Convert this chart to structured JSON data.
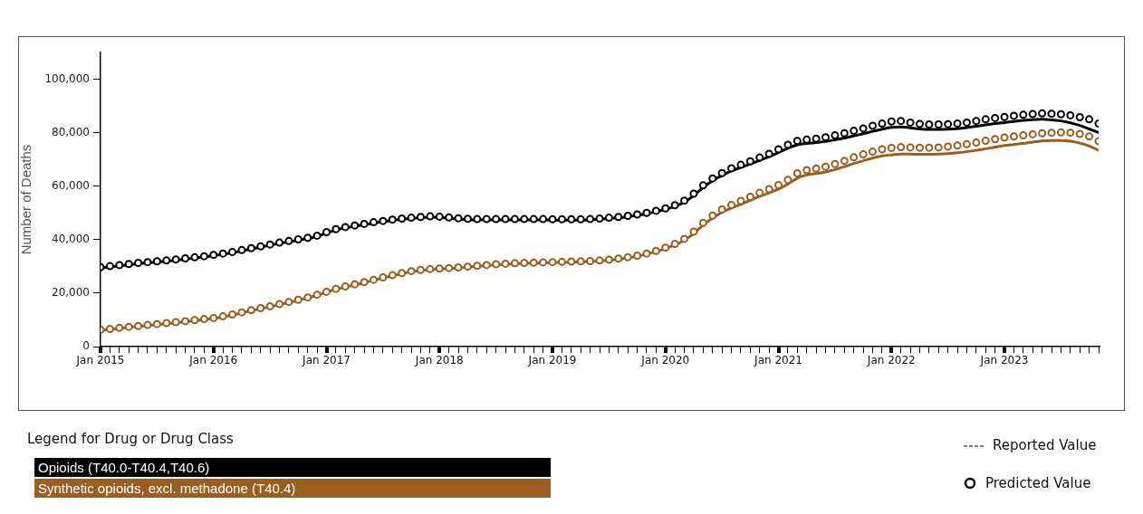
{
  "chart_data": {
    "type": "line",
    "ylabel": "Number of Deaths",
    "legend_title": "Legend for Drug or Drug Class",
    "legend": "bottom",
    "grid": false,
    "annotations": [
      "Reported Value",
      "Predicted Value"
    ],
    "x": [
      "2015-01",
      "2015-02",
      "2015-03",
      "2015-04",
      "2015-05",
      "2015-06",
      "2015-07",
      "2015-08",
      "2015-09",
      "2015-10",
      "2015-11",
      "2015-12",
      "2016-01",
      "2016-02",
      "2016-03",
      "2016-04",
      "2016-05",
      "2016-06",
      "2016-07",
      "2016-08",
      "2016-09",
      "2016-10",
      "2016-11",
      "2016-12",
      "2017-01",
      "2017-02",
      "2017-03",
      "2017-04",
      "2017-05",
      "2017-06",
      "2017-07",
      "2017-08",
      "2017-09",
      "2017-10",
      "2017-11",
      "2017-12",
      "2018-01",
      "2018-02",
      "2018-03",
      "2018-04",
      "2018-05",
      "2018-06",
      "2018-07",
      "2018-08",
      "2018-09",
      "2018-10",
      "2018-11",
      "2018-12",
      "2019-01",
      "2019-02",
      "2019-03",
      "2019-04",
      "2019-05",
      "2019-06",
      "2019-07",
      "2019-08",
      "2019-09",
      "2019-10",
      "2019-11",
      "2019-12",
      "2020-01",
      "2020-02",
      "2020-03",
      "2020-04",
      "2020-05",
      "2020-06",
      "2020-07",
      "2020-08",
      "2020-09",
      "2020-10",
      "2020-11",
      "2020-12",
      "2021-01",
      "2021-02",
      "2021-03",
      "2021-04",
      "2021-05",
      "2021-06",
      "2021-07",
      "2021-08",
      "2021-09",
      "2021-10",
      "2021-11",
      "2021-12",
      "2022-01",
      "2022-02",
      "2022-03",
      "2022-04",
      "2022-05",
      "2022-06",
      "2022-07",
      "2022-08",
      "2022-09",
      "2022-10",
      "2022-11",
      "2022-12",
      "2023-01",
      "2023-02",
      "2023-03",
      "2023-04",
      "2023-05",
      "2023-06",
      "2023-07",
      "2023-08",
      "2023-09",
      "2023-10",
      "2023-11"
    ],
    "xlim": [
      "2015-01",
      "2023-11"
    ],
    "xticks": [
      {
        "value": "2015-01",
        "label": "Jan 2015"
      },
      {
        "value": "2015-02",
        "label": null
      },
      {
        "value": "2015-03",
        "label": null
      },
      {
        "value": "2015-04",
        "label": null
      },
      {
        "value": "2015-05",
        "label": null
      },
      {
        "value": "2015-06",
        "label": null
      },
      {
        "value": "2015-07",
        "label": null
      },
      {
        "value": "2015-08",
        "label": null
      },
      {
        "value": "2015-09",
        "label": null
      },
      {
        "value": "2015-10",
        "label": null
      },
      {
        "value": "2015-11",
        "label": null
      },
      {
        "value": "2015-12",
        "label": null
      },
      {
        "value": "2016-01",
        "label": "Jan 2016"
      },
      {
        "value": "2016-02",
        "label": null
      },
      {
        "value": "2016-03",
        "label": null
      },
      {
        "value": "2016-04",
        "label": null
      },
      {
        "value": "2016-05",
        "label": null
      },
      {
        "value": "2016-06",
        "label": null
      },
      {
        "value": "2016-07",
        "label": null
      },
      {
        "value": "2016-08",
        "label": null
      },
      {
        "value": "2016-09",
        "label": null
      },
      {
        "value": "2016-10",
        "label": null
      },
      {
        "value": "2016-11",
        "label": null
      },
      {
        "value": "2016-12",
        "label": null
      },
      {
        "value": "2017-01",
        "label": "Jan 2017"
      },
      {
        "value": "2017-02",
        "label": null
      },
      {
        "value": "2017-03",
        "label": null
      },
      {
        "value": "2017-04",
        "label": null
      },
      {
        "value": "2017-05",
        "label": null
      },
      {
        "value": "2017-06",
        "label": null
      },
      {
        "value": "2017-07",
        "label": null
      },
      {
        "value": "2017-08",
        "label": null
      },
      {
        "value": "2017-09",
        "label": null
      },
      {
        "value": "2017-10",
        "label": null
      },
      {
        "value": "2017-11",
        "label": null
      },
      {
        "value": "2017-12",
        "label": null
      },
      {
        "value": "2018-01",
        "label": "Jan 2018"
      },
      {
        "value": "2018-02",
        "label": null
      },
      {
        "value": "2018-03",
        "label": null
      },
      {
        "value": "2018-04",
        "label": null
      },
      {
        "value": "2018-05",
        "label": null
      },
      {
        "value": "2018-06",
        "label": null
      },
      {
        "value": "2018-07",
        "label": null
      },
      {
        "value": "2018-08",
        "label": null
      },
      {
        "value": "2018-09",
        "label": null
      },
      {
        "value": "2018-10",
        "label": null
      },
      {
        "value": "2018-11",
        "label": null
      },
      {
        "value": "2018-12",
        "label": null
      },
      {
        "value": "2019-01",
        "label": "Jan 2019"
      },
      {
        "value": "2019-02",
        "label": null
      },
      {
        "value": "2019-03",
        "label": null
      },
      {
        "value": "2019-04",
        "label": null
      },
      {
        "value": "2019-05",
        "label": null
      },
      {
        "value": "2019-06",
        "label": null
      },
      {
        "value": "2019-07",
        "label": null
      },
      {
        "value": "2019-08",
        "label": null
      },
      {
        "value": "2019-09",
        "label": null
      },
      {
        "value": "2019-10",
        "label": null
      },
      {
        "value": "2019-11",
        "label": null
      },
      {
        "value": "2019-12",
        "label": null
      },
      {
        "value": "2020-01",
        "label": "Jan 2020"
      },
      {
        "value": "2020-02",
        "label": null
      },
      {
        "value": "2020-03",
        "label": null
      },
      {
        "value": "2020-04",
        "label": null
      },
      {
        "value": "2020-05",
        "label": null
      },
      {
        "value": "2020-06",
        "label": null
      },
      {
        "value": "2020-07",
        "label": null
      },
      {
        "value": "2020-08",
        "label": null
      },
      {
        "value": "2020-09",
        "label": null
      },
      {
        "value": "2020-10",
        "label": null
      },
      {
        "value": "2020-11",
        "label": null
      },
      {
        "value": "2020-12",
        "label": null
      },
      {
        "value": "2021-01",
        "label": "Jan 2021"
      },
      {
        "value": "2021-02",
        "label": null
      },
      {
        "value": "2021-03",
        "label": null
      },
      {
        "value": "2021-04",
        "label": null
      },
      {
        "value": "2021-05",
        "label": null
      },
      {
        "value": "2021-06",
        "label": null
      },
      {
        "value": "2021-07",
        "label": null
      },
      {
        "value": "2021-08",
        "label": null
      },
      {
        "value": "2021-09",
        "label": null
      },
      {
        "value": "2021-10",
        "label": null
      },
      {
        "value": "2021-11",
        "label": null
      },
      {
        "value": "2021-12",
        "label": null
      },
      {
        "value": "2022-01",
        "label": "Jan 2022"
      },
      {
        "value": "2022-02",
        "label": null
      },
      {
        "value": "2022-03",
        "label": null
      },
      {
        "value": "2022-04",
        "label": null
      },
      {
        "value": "2022-05",
        "label": null
      },
      {
        "value": "2022-06",
        "label": null
      },
      {
        "value": "2022-07",
        "label": null
      },
      {
        "value": "2022-08",
        "label": null
      },
      {
        "value": "2022-09",
        "label": null
      },
      {
        "value": "2022-10",
        "label": null
      },
      {
        "value": "2022-11",
        "label": null
      },
      {
        "value": "2022-12",
        "label": null
      },
      {
        "value": "2023-01",
        "label": "Jan 2023"
      },
      {
        "value": "2023-02",
        "label": null
      },
      {
        "value": "2023-03",
        "label": null
      },
      {
        "value": "2023-04",
        "label": null
      },
      {
        "value": "2023-05",
        "label": null
      },
      {
        "value": "2023-06",
        "label": null
      },
      {
        "value": "2023-07",
        "label": null
      },
      {
        "value": "2023-08",
        "label": null
      },
      {
        "value": "2023-09",
        "label": null
      },
      {
        "value": "2023-10",
        "label": null
      },
      {
        "value": "2023-11",
        "label": null
      }
    ],
    "ylim": [
      0,
      110000
    ],
    "yticks": [
      {
        "value": 0,
        "label": "0"
      },
      {
        "value": 20000,
        "label": "20,000"
      },
      {
        "value": 40000,
        "label": "40,000"
      },
      {
        "value": 60000,
        "label": "60,000"
      },
      {
        "value": 80000,
        "label": "80,000"
      },
      {
        "value": 100000,
        "label": "100,000"
      }
    ],
    "series": [
      {
        "name": "Opioids (T40.0-T40.4,T40.6)",
        "marker": "none",
        "color": "#000000",
        "values": [
          29400,
          29800,
          30200,
          30600,
          31000,
          31300,
          31600,
          31900,
          32300,
          32700,
          33100,
          33500,
          34000,
          34500,
          35100,
          35800,
          36500,
          37200,
          37900,
          38600,
          39200,
          39800,
          40400,
          41200,
          42500,
          43600,
          44400,
          45000,
          45600,
          46200,
          46700,
          47200,
          47600,
          47900,
          48200,
          48400,
          48300,
          48000,
          47700,
          47500,
          47400,
          47400,
          47400,
          47400,
          47400,
          47400,
          47400,
          47400,
          47300,
          47300,
          47300,
          47300,
          47400,
          47600,
          47900,
          48200,
          48600,
          49100,
          49700,
          50500,
          51300,
          52400,
          54000,
          56500,
          59500,
          62000,
          64000,
          65700,
          67000,
          68300,
          69600,
          71000,
          72600,
          74200,
          75500,
          76000,
          76300,
          76700,
          77300,
          78000,
          78800,
          79600,
          80500,
          81300,
          82000,
          82200,
          81800,
          81400,
          81200,
          81200,
          81300,
          81500,
          81900,
          82400,
          82900,
          83400,
          83800,
          84200,
          84600,
          84900,
          85000,
          84800,
          84400,
          83700,
          82700,
          81400,
          80000
        ]
      },
      {
        "type": "scatter",
        "marker": "circle",
        "color": "#000000",
        "values": [
          29700,
          30100,
          30500,
          30900,
          31300,
          31600,
          31900,
          32200,
          32600,
          33000,
          33400,
          33800,
          34300,
          34800,
          35400,
          36100,
          36800,
          37500,
          38200,
          38900,
          39500,
          40100,
          40700,
          41500,
          42800,
          43900,
          44700,
          45300,
          45900,
          46500,
          47000,
          47500,
          47900,
          48200,
          48500,
          48700,
          48600,
          48300,
          48000,
          47800,
          47700,
          47700,
          47700,
          47700,
          47700,
          47700,
          47700,
          47700,
          47600,
          47600,
          47600,
          47600,
          47700,
          47900,
          48200,
          48500,
          48900,
          49400,
          50000,
          50800,
          51700,
          52900,
          54600,
          57200,
          60300,
          62900,
          64900,
          66700,
          68000,
          69300,
          70700,
          72100,
          73800,
          75500,
          76900,
          77400,
          77800,
          78300,
          79000,
          79800,
          80700,
          81600,
          82600,
          83400,
          84200,
          84400,
          83800,
          83300,
          83100,
          83100,
          83200,
          83400,
          83800,
          84400,
          85000,
          85500,
          85900,
          86300,
          86700,
          87000,
          87200,
          87100,
          86900,
          86500,
          85800,
          85000,
          83400
        ]
      },
      {
        "name": "Synthetic opioids, excl. methadone (T40.4)",
        "marker": "none",
        "color": "#9c5e1f",
        "values": [
          6100,
          6400,
          6800,
          7200,
          7500,
          7900,
          8200,
          8600,
          8900,
          9300,
          9700,
          10100,
          10500,
          11100,
          11800,
          12600,
          13400,
          14200,
          14900,
          15700,
          16500,
          17300,
          18200,
          19200,
          20300,
          21400,
          22300,
          23100,
          23900,
          24800,
          25700,
          26500,
          27300,
          28000,
          28500,
          28800,
          29000,
          29200,
          29400,
          29700,
          30000,
          30300,
          30600,
          30800,
          31000,
          31100,
          31200,
          31300,
          31400,
          31500,
          31600,
          31700,
          31800,
          32000,
          32300,
          32700,
          33200,
          33800,
          34600,
          35600,
          36700,
          38000,
          39800,
          42300,
          45500,
          48000,
          50200,
          51800,
          53200,
          54700,
          56200,
          57500,
          58900,
          60800,
          63000,
          64200,
          64700,
          65300,
          66200,
          67300,
          68500,
          69500,
          70500,
          71300,
          71700,
          72000,
          72000,
          71900,
          71900,
          72000,
          72200,
          72500,
          72900,
          73400,
          74000,
          74600,
          75200,
          75600,
          76000,
          76500,
          76900,
          77100,
          77100,
          76800,
          76100,
          75000,
          73400
        ]
      },
      {
        "type": "scatter",
        "marker": "circle",
        "color": "#9c5e1f",
        "values": [
          6300,
          6600,
          7000,
          7400,
          7700,
          8100,
          8400,
          8800,
          9100,
          9500,
          9900,
          10300,
          10700,
          11300,
          12000,
          12800,
          13600,
          14400,
          15100,
          15900,
          16700,
          17500,
          18400,
          19400,
          20500,
          21600,
          22500,
          23300,
          24100,
          25000,
          25900,
          26700,
          27500,
          28200,
          28700,
          29000,
          29200,
          29400,
          29600,
          29900,
          30200,
          30500,
          30800,
          31000,
          31200,
          31300,
          31400,
          31500,
          31600,
          31700,
          31800,
          31900,
          32000,
          32200,
          32500,
          32900,
          33400,
          34000,
          34800,
          35800,
          37000,
          38400,
          40300,
          43000,
          46300,
          49000,
          51300,
          53000,
          54500,
          56000,
          57500,
          58900,
          60400,
          62400,
          64800,
          66000,
          66600,
          67300,
          68300,
          69500,
          70800,
          71900,
          72900,
          73800,
          74300,
          74600,
          74500,
          74400,
          74400,
          74500,
          74800,
          75200,
          75700,
          76300,
          77000,
          77600,
          78200,
          78600,
          79000,
          79400,
          79800,
          80000,
          80100,
          80000,
          79500,
          78600,
          76800
        ]
      }
    ]
  }
}
